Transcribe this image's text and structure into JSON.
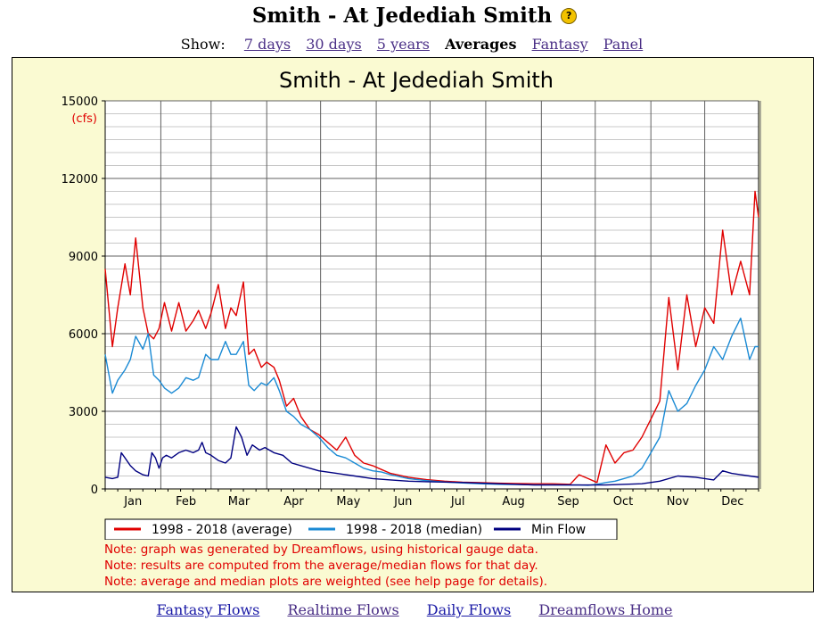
{
  "header": {
    "title": "Smith - At Jedediah Smith",
    "help_icon": "question-circle-icon"
  },
  "nav": {
    "show_label": "Show:",
    "links": [
      "7 days",
      "30 days",
      "5 years"
    ],
    "current": "Averages",
    "links_after": [
      "Fantasy",
      "Panel"
    ]
  },
  "chart_data": {
    "type": "line",
    "title": "Smith - At Jedediah Smith",
    "ylabel": "(cfs)",
    "ylim": [
      0,
      15000
    ],
    "yticks": [
      0,
      3000,
      6000,
      9000,
      12000,
      15000
    ],
    "x_month_labels": [
      "Jan",
      "Feb",
      "Mar",
      "Apr",
      "May",
      "Jun",
      "Jul",
      "Aug",
      "Sep",
      "Oct",
      "Nov",
      "Dec"
    ],
    "xlim_day_of_year": [
      1,
      365
    ],
    "grid": true,
    "legend_position": "bottom",
    "series": [
      {
        "name": "1998 - 2018 (average)",
        "color": "#e00000",
        "x": [
          1,
          5,
          8,
          12,
          15,
          18,
          22,
          25,
          28,
          31,
          34,
          38,
          42,
          46,
          50,
          53,
          57,
          60,
          64,
          68,
          71,
          74,
          78,
          81,
          84,
          88,
          91,
          95,
          98,
          102,
          106,
          110,
          115,
          120,
          125,
          130,
          135,
          140,
          145,
          150,
          155,
          160,
          170,
          180,
          190,
          200,
          210,
          220,
          230,
          240,
          250,
          260,
          265,
          270,
          275,
          280,
          285,
          290,
          295,
          300,
          305,
          310,
          315,
          320,
          325,
          330,
          335,
          340,
          345,
          350,
          355,
          360,
          363,
          365
        ],
        "values": [
          8500,
          5500,
          7000,
          8700,
          7500,
          9700,
          7000,
          6000,
          5800,
          6200,
          7200,
          6100,
          7200,
          6100,
          6500,
          6900,
          6200,
          6800,
          7900,
          6200,
          7000,
          6700,
          8000,
          5200,
          5400,
          4700,
          4900,
          4700,
          4200,
          3200,
          3500,
          2800,
          2300,
          2100,
          1800,
          1500,
          2000,
          1300,
          1000,
          900,
          750,
          600,
          450,
          360,
          300,
          260,
          240,
          220,
          210,
          200,
          200,
          180,
          550,
          400,
          250,
          1700,
          1000,
          1400,
          1500,
          2000,
          2700,
          3400,
          7400,
          4600,
          7500,
          5500,
          7000,
          6400,
          10000,
          7500,
          8800,
          7500,
          11500,
          10500
        ]
      },
      {
        "name": "1998 - 2018 (median)",
        "color": "#1a8ad4",
        "x": [
          1,
          5,
          8,
          12,
          15,
          18,
          22,
          25,
          28,
          31,
          34,
          38,
          42,
          46,
          50,
          53,
          57,
          60,
          64,
          68,
          71,
          74,
          78,
          81,
          84,
          88,
          91,
          95,
          98,
          102,
          106,
          110,
          115,
          120,
          125,
          130,
          135,
          140,
          145,
          150,
          155,
          160,
          170,
          180,
          190,
          200,
          210,
          220,
          230,
          240,
          250,
          260,
          265,
          270,
          275,
          280,
          285,
          290,
          295,
          300,
          305,
          310,
          315,
          320,
          325,
          330,
          335,
          340,
          345,
          350,
          355,
          360,
          363,
          365
        ],
        "values": [
          5200,
          3700,
          4200,
          4600,
          5000,
          5900,
          5400,
          6000,
          4400,
          4200,
          3900,
          3700,
          3900,
          4300,
          4200,
          4300,
          5200,
          5000,
          5000,
          5700,
          5200,
          5200,
          5700,
          4000,
          3800,
          4100,
          4000,
          4300,
          3800,
          3000,
          2800,
          2500,
          2300,
          2000,
          1600,
          1300,
          1200,
          1000,
          800,
          700,
          650,
          550,
          400,
          320,
          270,
          230,
          200,
          180,
          170,
          160,
          160,
          150,
          150,
          140,
          180,
          250,
          300,
          400,
          500,
          800,
          1400,
          2000,
          3800,
          3000,
          3300,
          4000,
          4600,
          5500,
          5000,
          5900,
          6600,
          5000,
          5500,
          5500
        ]
      },
      {
        "name": "Min Flow",
        "color": "#000080",
        "x": [
          1,
          5,
          8,
          10,
          12,
          15,
          18,
          22,
          25,
          27,
          29,
          31,
          33,
          35,
          38,
          42,
          46,
          50,
          53,
          55,
          57,
          60,
          64,
          68,
          71,
          74,
          77,
          80,
          83,
          87,
          90,
          95,
          100,
          105,
          110,
          120,
          130,
          140,
          150,
          160,
          170,
          180,
          200,
          220,
          240,
          260,
          280,
          300,
          310,
          320,
          330,
          340,
          345,
          350,
          355,
          360,
          365
        ],
        "values": [
          450,
          400,
          450,
          1400,
          1200,
          900,
          700,
          550,
          500,
          1400,
          1200,
          800,
          1200,
          1300,
          1200,
          1400,
          1500,
          1400,
          1500,
          1800,
          1400,
          1300,
          1100,
          1000,
          1200,
          2400,
          2000,
          1300,
          1700,
          1500,
          1600,
          1400,
          1300,
          1000,
          900,
          700,
          600,
          500,
          400,
          350,
          300,
          280,
          250,
          200,
          150,
          150,
          150,
          200,
          300,
          500,
          450,
          350,
          700,
          600,
          550,
          500,
          450
        ]
      }
    ]
  },
  "notes": [
    "Note: graph was generated by Dreamflows, using historical gauge data.",
    "Note: results are computed from the average/median flows for that day.",
    "Note: average and median plots are weighted (see help page for details)."
  ],
  "footer": {
    "links": [
      "Fantasy Flows",
      "Realtime Flows",
      "Daily Flows",
      "Dreamflows Home"
    ]
  }
}
